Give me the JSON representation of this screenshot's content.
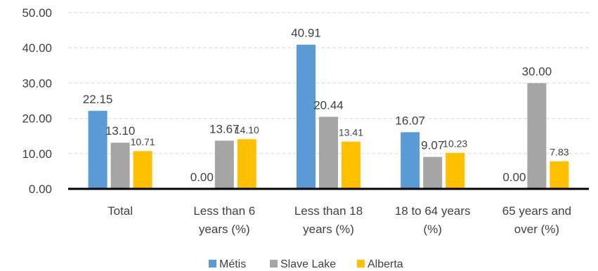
{
  "chart_data": {
    "type": "bar",
    "categories": [
      [
        "Total"
      ],
      [
        "Less than 6",
        "years (%)"
      ],
      [
        "Less than 18",
        "years (%)"
      ],
      [
        "18 to 64 years",
        "(%)"
      ],
      [
        "65 years and",
        "over (%)"
      ]
    ],
    "series": [
      {
        "name": "Métis",
        "color": "#5b9bd5",
        "values": [
          22.15,
          0.0,
          40.91,
          16.07,
          0.0
        ],
        "labels": [
          "22.15",
          "0.00",
          "40.91",
          "16.07",
          "0.00"
        ]
      },
      {
        "name": "Slave Lake",
        "color": "#a5a5a5",
        "values": [
          13.1,
          13.67,
          20.44,
          9.07,
          30.0
        ],
        "labels": [
          "13.10",
          "13.67",
          "20.44",
          "9.07",
          "30.00"
        ]
      },
      {
        "name": "Alberta",
        "color": "#ffc000",
        "values": [
          10.71,
          14.1,
          13.41,
          10.23,
          7.83
        ],
        "labels": [
          "10.71",
          "14.10",
          "13.41",
          "10.23",
          "7.83"
        ]
      }
    ],
    "yticks": [
      "0.00",
      "10.00",
      "20.00",
      "30.00",
      "40.00",
      "50.00"
    ],
    "ylim": [
      0,
      50
    ],
    "grid": true,
    "legend_position": "bottom"
  }
}
